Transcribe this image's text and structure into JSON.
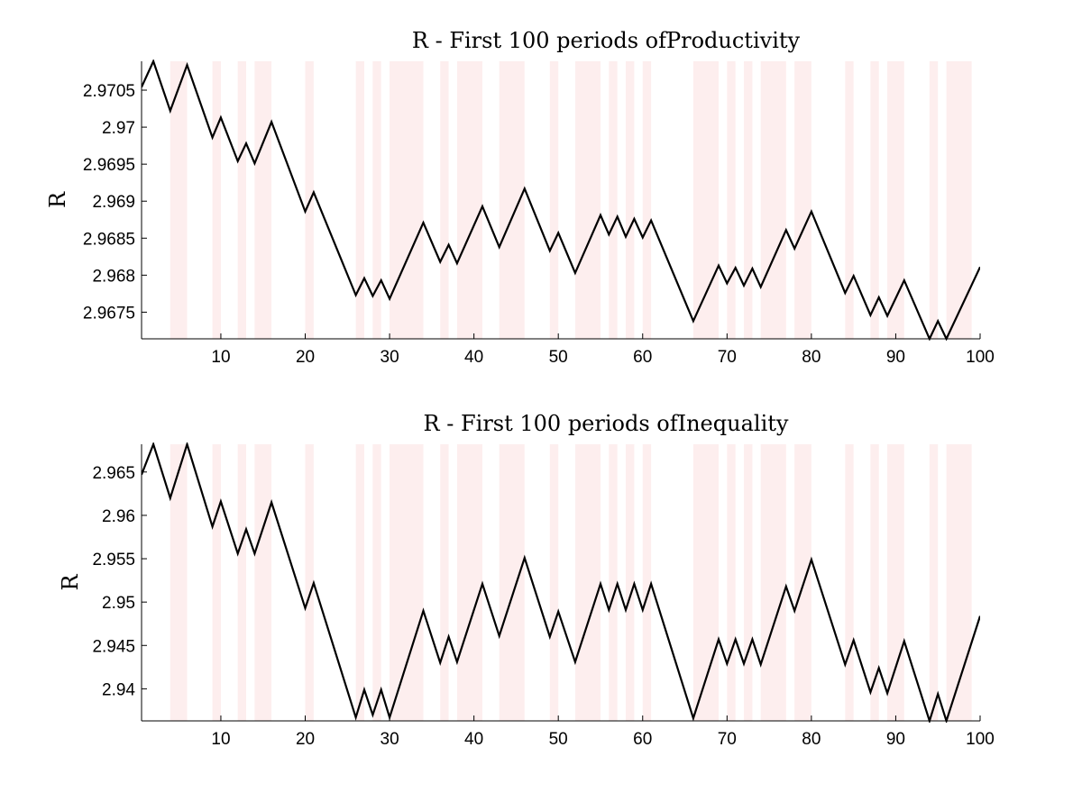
{
  "colors": {
    "band": "#fdeeee",
    "line": "#000000",
    "axis": "#000000",
    "background": "#ffffff"
  },
  "chart_data": [
    {
      "type": "line",
      "title": "R - First 100 periods ofProductivity",
      "xlabel": "",
      "ylabel": "R",
      "xlim": [
        0.6,
        100
      ],
      "ylim": [
        2.96714,
        2.97089
      ],
      "xticks": [
        10,
        20,
        30,
        40,
        50,
        60,
        70,
        80,
        90,
        100
      ],
      "xtick_labels": [
        "10",
        "20",
        "30",
        "40",
        "50",
        "60",
        "70",
        "80",
        "90",
        "100"
      ],
      "yticks": [
        2.9675,
        2.968,
        2.9685,
        2.969,
        2.9695,
        2.97,
        2.9705
      ],
      "ytick_labels": [
        "2.9675",
        "2.968",
        "2.9685",
        "2.969",
        "2.9695",
        "2.97",
        "2.9705"
      ],
      "grid": false,
      "shaded_intervals": [
        [
          4,
          6
        ],
        [
          9,
          10
        ],
        [
          12,
          13
        ],
        [
          14,
          16
        ],
        [
          20,
          21
        ],
        [
          26,
          27
        ],
        [
          28,
          29
        ],
        [
          30,
          34
        ],
        [
          36,
          37
        ],
        [
          38,
          41
        ],
        [
          43,
          46
        ],
        [
          49,
          50
        ],
        [
          52,
          55
        ],
        [
          56,
          57
        ],
        [
          58,
          59
        ],
        [
          60,
          61
        ],
        [
          66,
          69
        ],
        [
          70,
          71
        ],
        [
          72,
          73
        ],
        [
          74,
          77
        ],
        [
          78,
          80
        ],
        [
          84,
          85
        ],
        [
          87,
          88
        ],
        [
          89,
          91
        ],
        [
          94,
          95
        ],
        [
          96,
          99
        ]
      ],
      "x": [
        0.6,
        2,
        4,
        6,
        9,
        10,
        12,
        13,
        14,
        16,
        20,
        21,
        26,
        27,
        28,
        29,
        30,
        34,
        36,
        37,
        38,
        41,
        43,
        46,
        49,
        50,
        52,
        55,
        56,
        57,
        58,
        59,
        60,
        61,
        66,
        69,
        70,
        71,
        72,
        73,
        74,
        77,
        78,
        80,
        84,
        85,
        87,
        88,
        89,
        91,
        94,
        95,
        96,
        100
      ],
      "y": [
        2.97054,
        2.97089,
        2.97022,
        2.97084,
        2.96986,
        2.97013,
        2.96954,
        2.96978,
        2.96951,
        2.97007,
        2.96886,
        2.96912,
        2.96773,
        2.96796,
        2.96772,
        2.96793,
        2.96768,
        2.96871,
        2.96818,
        2.96841,
        2.96816,
        2.96893,
        2.96838,
        2.96917,
        2.96833,
        2.96857,
        2.96803,
        2.96881,
        2.96855,
        2.96879,
        2.96852,
        2.96876,
        2.96851,
        2.96874,
        2.96738,
        2.96813,
        2.96789,
        2.9681,
        2.96786,
        2.96809,
        2.96784,
        2.96861,
        2.96836,
        2.96886,
        2.96776,
        2.96799,
        2.96746,
        2.9677,
        2.96745,
        2.96793,
        2.96714,
        2.96738,
        2.96714,
        2.96811
      ]
    },
    {
      "type": "line",
      "title": "R - First 100 periods ofInequality",
      "xlabel": "",
      "ylabel": "R",
      "xlim": [
        0.6,
        100
      ],
      "ylim": [
        2.9363,
        2.9682
      ],
      "xticks": [
        10,
        20,
        30,
        40,
        50,
        60,
        70,
        80,
        90,
        100
      ],
      "xtick_labels": [
        "10",
        "20",
        "30",
        "40",
        "50",
        "60",
        "70",
        "80",
        "90",
        "100"
      ],
      "yticks": [
        2.94,
        2.945,
        2.95,
        2.955,
        2.96,
        2.965
      ],
      "ytick_labels": [
        "2.94",
        "2.945",
        "2.95",
        "2.955",
        "2.96",
        "2.965"
      ],
      "grid": false,
      "shaded_intervals": [
        [
          4,
          6
        ],
        [
          9,
          10
        ],
        [
          12,
          13
        ],
        [
          14,
          16
        ],
        [
          20,
          21
        ],
        [
          26,
          27
        ],
        [
          28,
          29
        ],
        [
          30,
          34
        ],
        [
          36,
          37
        ],
        [
          38,
          41
        ],
        [
          43,
          46
        ],
        [
          49,
          50
        ],
        [
          52,
          55
        ],
        [
          56,
          57
        ],
        [
          58,
          59
        ],
        [
          60,
          61
        ],
        [
          66,
          69
        ],
        [
          70,
          71
        ],
        [
          72,
          73
        ],
        [
          74,
          77
        ],
        [
          78,
          80
        ],
        [
          84,
          85
        ],
        [
          87,
          88
        ],
        [
          89,
          91
        ],
        [
          94,
          95
        ],
        [
          96,
          99
        ]
      ],
      "x": [
        0.6,
        2,
        4,
        6,
        9,
        10,
        12,
        13,
        14,
        16,
        20,
        21,
        26,
        27,
        28,
        29,
        30,
        34,
        36,
        37,
        38,
        41,
        43,
        46,
        49,
        50,
        52,
        55,
        56,
        57,
        58,
        59,
        60,
        61,
        66,
        69,
        70,
        71,
        72,
        73,
        74,
        77,
        78,
        80,
        84,
        85,
        87,
        88,
        89,
        91,
        94,
        95,
        96,
        100
      ],
      "y": [
        2.9647,
        2.9682,
        2.962,
        2.9682,
        2.9587,
        2.9616,
        2.9556,
        2.9584,
        2.9556,
        2.9615,
        2.9493,
        2.9522,
        2.9367,
        2.9399,
        2.937,
        2.9399,
        2.9367,
        2.949,
        2.943,
        2.946,
        2.9431,
        2.9521,
        2.9461,
        2.9551,
        2.946,
        2.9489,
        2.9431,
        2.9521,
        2.9491,
        2.9521,
        2.9491,
        2.9521,
        2.9491,
        2.9521,
        2.9366,
        2.9457,
        2.9429,
        2.9457,
        2.9429,
        2.9457,
        2.9428,
        2.9518,
        2.949,
        2.9549,
        2.9428,
        2.9456,
        2.9396,
        2.9424,
        2.9395,
        2.9455,
        2.9363,
        2.9394,
        2.9363,
        2.9484
      ]
    }
  ]
}
